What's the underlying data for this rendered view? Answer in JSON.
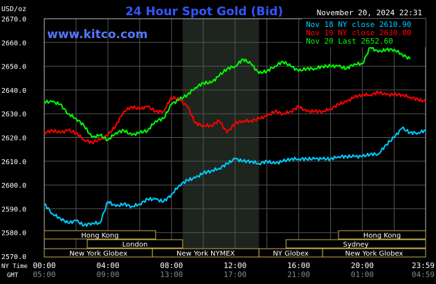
{
  "chart_data": {
    "type": "line",
    "title": "24 Hour Spot Gold (Bid)",
    "watermark": "www.kitco.com",
    "timestamp": "November 20, 2024 22:31",
    "ylabel": "USD/oz",
    "ylim": [
      2570,
      2670
    ],
    "y_ticks": [
      "2670.0",
      "2660.0",
      "2650.0",
      "2640.0",
      "2630.0",
      "2620.0",
      "2610.0",
      "2600.0",
      "2590.0",
      "2580.0",
      "2570.0"
    ],
    "x_axis_name_top": "NY Time",
    "x_axis_name_bottom": "GMT",
    "x_ticks_ny": [
      "00:00",
      "04:00",
      "08:00",
      "12:00",
      "16:00",
      "20:00",
      "23:59"
    ],
    "x_ticks_gmt": [
      "05:00",
      "09:00",
      "13:00",
      "17:00",
      "21:00",
      "01:00",
      "04:59"
    ],
    "grid": true,
    "legend_position": "top-right",
    "shaded_period_hours": [
      8.7,
      13.5
    ],
    "series": [
      {
        "name": "Nov 18 NY close 2610.90",
        "color": "#00ccff",
        "x": [
          0,
          0.5,
          1,
          1.5,
          2,
          2.5,
          3,
          3.5,
          4,
          4.5,
          5,
          5.5,
          6,
          6.5,
          7,
          7.5,
          8,
          8.5,
          9,
          9.5,
          10,
          10.5,
          11,
          11.5,
          12,
          12.5,
          13,
          13.5,
          14,
          14.5,
          15,
          15.5,
          16,
          16.5,
          17,
          17.5,
          18,
          18.5,
          19,
          19.5,
          20,
          20.5,
          21,
          21.5,
          22,
          22.5,
          23,
          23.5,
          23.98
        ],
        "values": [
          2592,
          2588,
          2586,
          2584,
          2585,
          2583,
          2584,
          2584,
          2593,
          2591,
          2592,
          2591,
          2592,
          2594,
          2594,
          2593,
          2596,
          2600,
          2602,
          2603,
          2605,
          2606,
          2607,
          2609,
          2611,
          2610,
          2610,
          2609,
          2610,
          2609,
          2610,
          2611,
          2611,
          2611,
          2611,
          2611,
          2611,
          2612,
          2612,
          2612,
          2612,
          2613,
          2613,
          2617,
          2620,
          2624,
          2622,
          2622,
          2623
        ]
      },
      {
        "name": "Nov 19 NY close 2630.80",
        "color": "#ff0000",
        "x": [
          0,
          0.5,
          1,
          1.5,
          2,
          2.5,
          3,
          3.5,
          4,
          4.5,
          5,
          5.5,
          6,
          6.5,
          7,
          7.5,
          8,
          8.5,
          9,
          9.5,
          10,
          10.5,
          11,
          11.5,
          12,
          12.5,
          13,
          13.5,
          14,
          14.5,
          15,
          15.5,
          16,
          16.5,
          17,
          17.5,
          18,
          18.5,
          19,
          19.5,
          20,
          20.5,
          21,
          21.5,
          22,
          22.5,
          23,
          23.5,
          23.98
        ],
        "values": [
          2622,
          2623,
          2622,
          2623,
          2622,
          2619,
          2618,
          2619,
          2621,
          2625,
          2631,
          2633,
          2632,
          2633,
          2631,
          2631,
          2637,
          2636,
          2633,
          2626,
          2625,
          2625,
          2627,
          2622,
          2626,
          2627,
          2627,
          2628,
          2629,
          2631,
          2630,
          2631,
          2633,
          2631,
          2631,
          2631,
          2632,
          2634,
          2635,
          2637,
          2638,
          2638,
          2639,
          2638,
          2638,
          2638,
          2637,
          2636,
          2635
        ]
      },
      {
        "name": "Nov 20 Last 2652.60",
        "color": "#00ff00",
        "x": [
          0,
          0.5,
          1,
          1.5,
          2,
          2.5,
          3,
          3.5,
          4,
          4.5,
          5,
          5.5,
          6,
          6.5,
          7,
          7.5,
          8,
          8.5,
          9,
          9.5,
          10,
          10.5,
          11,
          11.5,
          12,
          12.5,
          13,
          13.5,
          14,
          14.5,
          15,
          15.5,
          16,
          16.5,
          17,
          17.5,
          18,
          18.5,
          19,
          19.5,
          20,
          20.5,
          21,
          21.5,
          22,
          22.5,
          23
        ],
        "values": [
          2635,
          2635,
          2634,
          2630,
          2628,
          2625,
          2620,
          2621,
          2619,
          2622,
          2623,
          2621,
          2622,
          2623,
          2627,
          2628,
          2634,
          2636,
          2638,
          2641,
          2643,
          2643,
          2646,
          2649,
          2650,
          2653,
          2651,
          2647,
          2648,
          2650,
          2652,
          2650,
          2648,
          2649,
          2649,
          2650,
          2650,
          2650,
          2649,
          2651,
          2651,
          2658,
          2656,
          2657,
          2657,
          2655,
          2653
        ]
      }
    ],
    "sessions": [
      {
        "name": "Hong Kong",
        "start": 0,
        "end": 7,
        "row": 0
      },
      {
        "name": "Hong Kong",
        "start": 18.5,
        "end": 23.98,
        "row": 0
      },
      {
        "name": "London",
        "start": 2.7,
        "end": 8.7,
        "row": 1
      },
      {
        "name": "Sydney",
        "start": 15.2,
        "end": 23.98,
        "row": 1
      },
      {
        "name": "New York Globex",
        "start": 0,
        "end": 6.8,
        "row": 2
      },
      {
        "name": "New York NYMEX",
        "start": 6.8,
        "end": 13.5,
        "row": 2
      },
      {
        "name": "NY Globex",
        "start": 13.5,
        "end": 17.5,
        "row": 2
      },
      {
        "name": "New York Globex",
        "start": 17.5,
        "end": 23.98,
        "row": 2
      }
    ]
  }
}
